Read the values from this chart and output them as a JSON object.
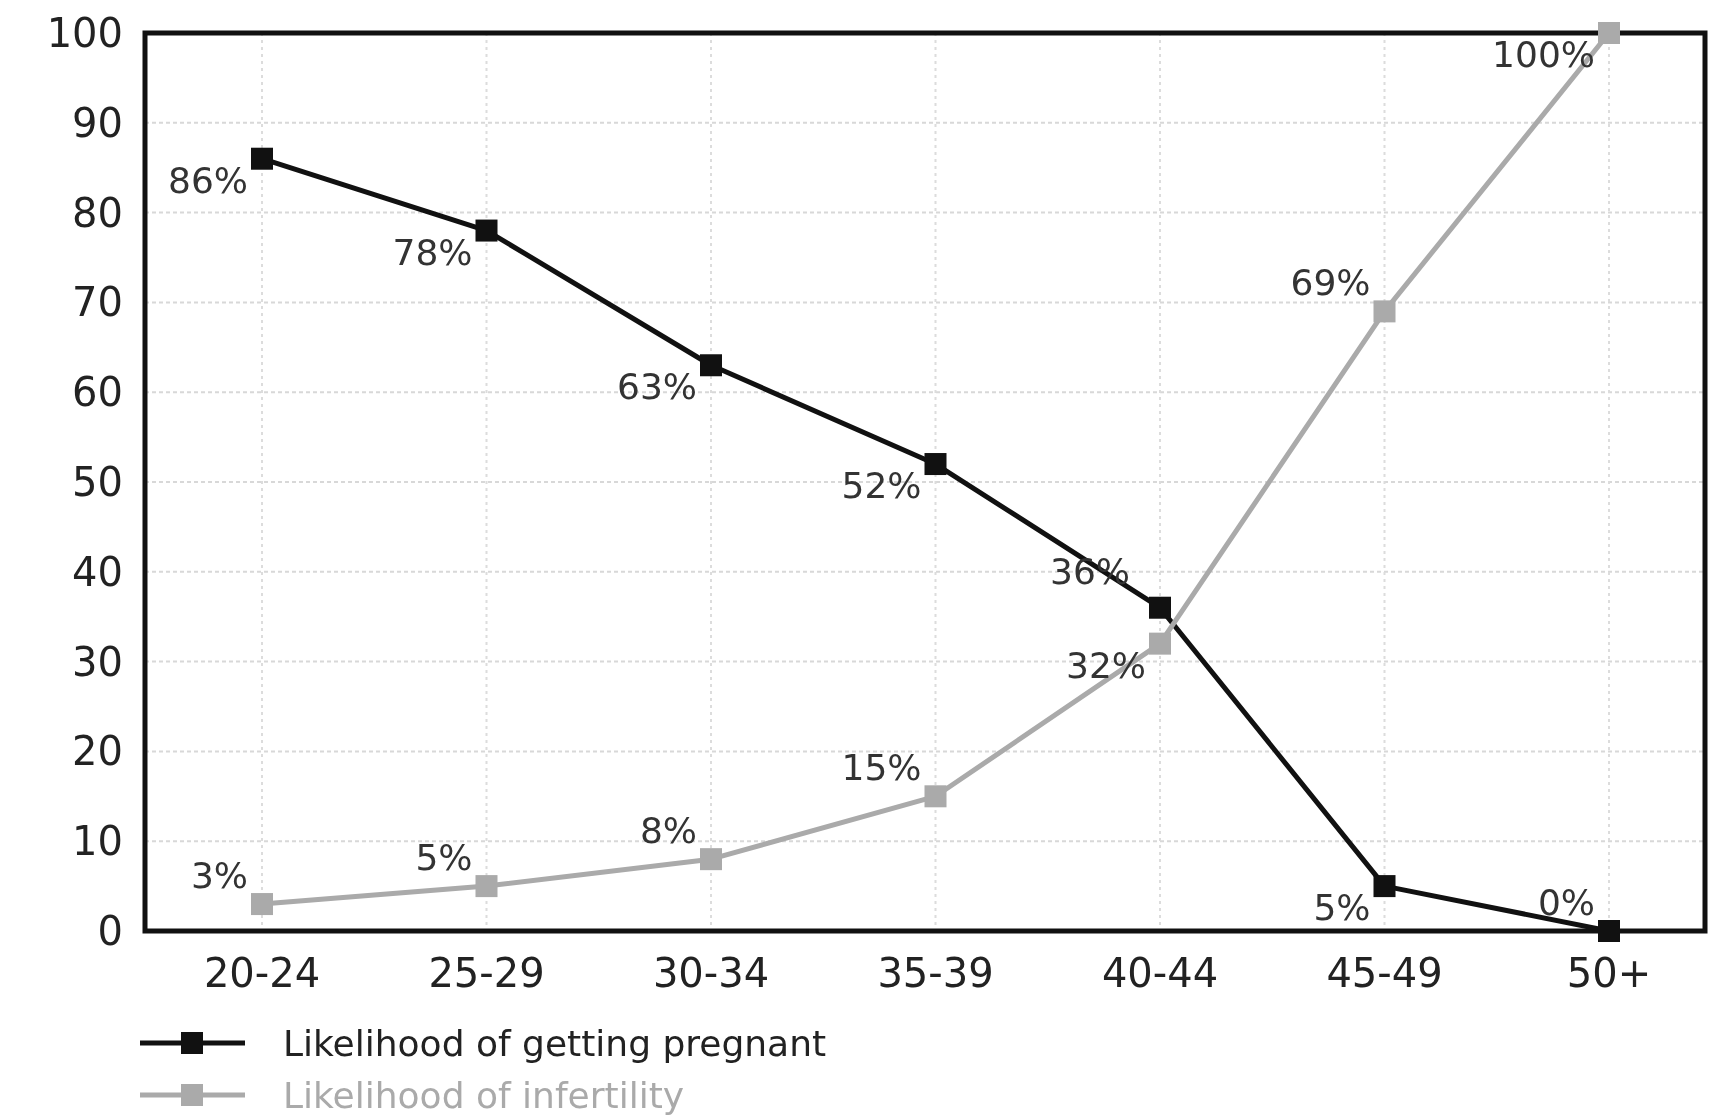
{
  "chart_data": {
    "type": "line",
    "categories": [
      "20-24",
      "25-29",
      "30-34",
      "35-39",
      "40-44",
      "45-49",
      "50+"
    ],
    "series": [
      {
        "name": "Likelihood of getting pregnant",
        "color": "#111111",
        "values": [
          86,
          78,
          63,
          52,
          36,
          5,
          0
        ],
        "value_labels": [
          "86%",
          "78%",
          "63%",
          "52%",
          "36%",
          "5%",
          "0%"
        ]
      },
      {
        "name": "Likelihood of infertility",
        "color": "#aaaaaa",
        "values": [
          3,
          5,
          8,
          15,
          32,
          69,
          100
        ],
        "value_labels": [
          "3%",
          "5%",
          "8%",
          "15%",
          "32%",
          "69%",
          "100%"
        ]
      }
    ],
    "ylim": [
      0,
      100
    ],
    "yticks": [
      0,
      10,
      20,
      30,
      40,
      50,
      60,
      70,
      80,
      90,
      100
    ],
    "grid": true,
    "legend": "bottom left",
    "marker": "square",
    "line_style": "solid"
  }
}
